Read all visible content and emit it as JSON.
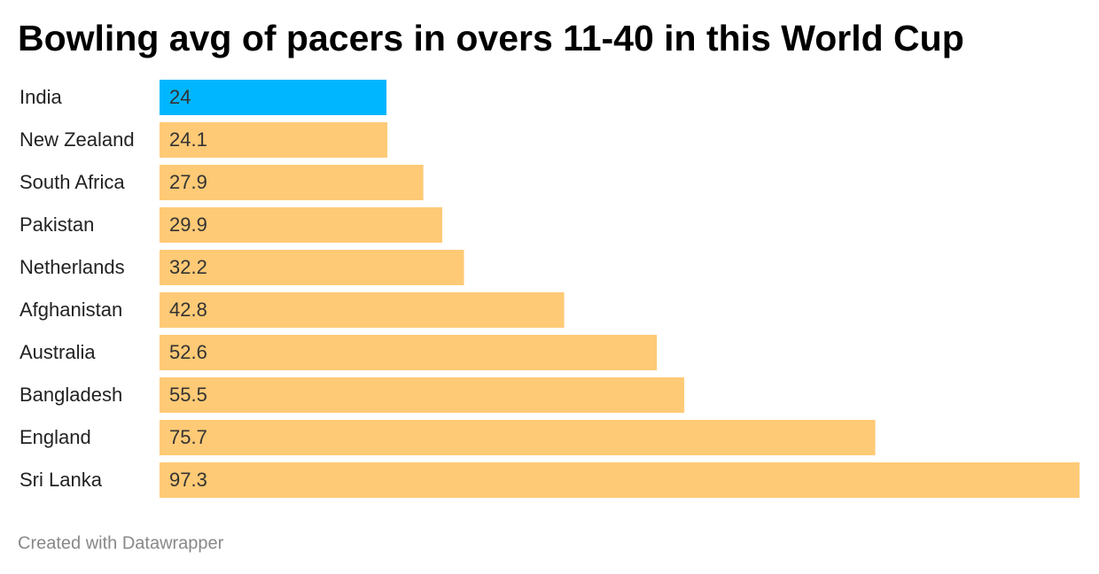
{
  "chart_data": {
    "type": "bar",
    "orientation": "horizontal",
    "title": "Bowling avg of pacers in overs 11-40 in this World Cup",
    "categories": [
      "India",
      "New Zealand",
      "South Africa",
      "Pakistan",
      "Netherlands",
      "Afghanistan",
      "Australia",
      "Bangladesh",
      "England",
      "Sri Lanka"
    ],
    "values": [
      24,
      24.1,
      27.9,
      29.9,
      32.2,
      42.8,
      52.6,
      55.5,
      75.7,
      97.3
    ],
    "colors": [
      "#00b6ff",
      "#ffca76",
      "#ffca76",
      "#ffca76",
      "#ffca76",
      "#ffca76",
      "#ffca76",
      "#ffca76",
      "#ffca76",
      "#ffca76"
    ],
    "footer": "Created with Datawrapper"
  }
}
